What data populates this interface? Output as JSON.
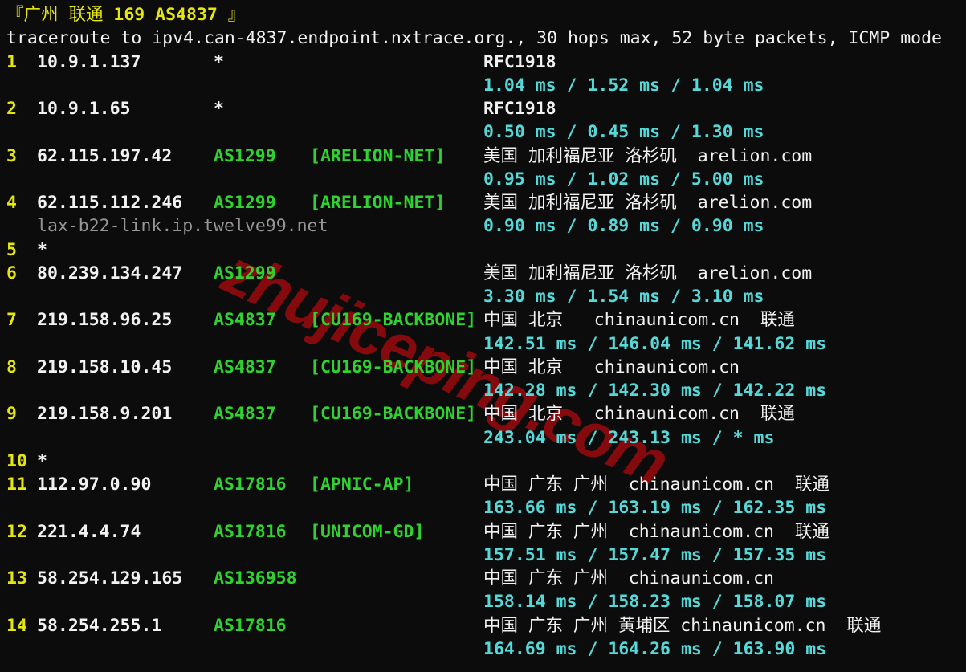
{
  "watermark": "zhujiceping.com",
  "colors": {
    "background": "#0c0c0c",
    "yellow": "#e5e510",
    "green": "#2fd32f",
    "cyan": "#56d8d8",
    "white": "#f2f2f2",
    "gray": "#969696",
    "watermark_red": "#8b0a0e"
  },
  "header": {
    "title_prefix": "『广州 联通 ",
    "title_asn": "169 AS4837",
    "title_suffix": " 』",
    "summary": "traceroute to ipv4.can-4837.endpoint.nxtrace.org., 30 hops max, 52 byte packets, ICMP mode"
  },
  "hops": [
    {
      "n": "1",
      "ip": "10.9.1.137",
      "asn": "*",
      "name": "",
      "geo": "RFC1918",
      "geo_bold": true,
      "lat": "1.04 ms / 1.52 ms / 1.04 ms"
    },
    {
      "n": "2",
      "ip": "10.9.1.65",
      "asn": "*",
      "name": "",
      "geo": "RFC1918",
      "geo_bold": true,
      "lat": "0.50 ms / 0.45 ms / 1.30 ms"
    },
    {
      "n": "3",
      "ip": "62.115.197.42",
      "asn": "AS1299",
      "name": "[ARELION-NET]",
      "geo": "美国 加利福尼亚 洛杉矶  arelion.com",
      "lat": "0.95 ms / 1.02 ms / 5.00 ms"
    },
    {
      "n": "4",
      "ip": "62.115.112.246",
      "asn": "AS1299",
      "name": "[ARELION-NET]",
      "geo": "美国 加利福尼亚 洛杉矶  arelion.com",
      "host": "lax-b22-link.ip.twelve99.net",
      "lat": "0.90 ms / 0.89 ms / 0.90 ms"
    },
    {
      "n": "5",
      "ip": "*"
    },
    {
      "n": "6",
      "ip": "80.239.134.247",
      "asn": "AS1299",
      "name": "",
      "geo": "美国 加利福尼亚 洛杉矶  arelion.com",
      "lat": "3.30 ms / 1.54 ms / 3.10 ms"
    },
    {
      "n": "7",
      "ip": "219.158.96.25",
      "asn": "AS4837",
      "name": "[CU169-BACKBONE]",
      "geo": "中国 北京   chinaunicom.cn  联通",
      "lat": "142.51 ms / 146.04 ms / 141.62 ms"
    },
    {
      "n": "8",
      "ip": "219.158.10.45",
      "asn": "AS4837",
      "name": "[CU169-BACKBONE]",
      "geo": "中国 北京   chinaunicom.cn",
      "lat": "142.28 ms / 142.30 ms / 142.22 ms"
    },
    {
      "n": "9",
      "ip": "219.158.9.201",
      "asn": "AS4837",
      "name": "[CU169-BACKBONE]",
      "geo": "中国 北京   chinaunicom.cn  联通",
      "lat": "243.04 ms / 243.13 ms / * ms"
    },
    {
      "n": "10",
      "ip": "*"
    },
    {
      "n": "11",
      "ip": "112.97.0.90",
      "asn": "AS17816",
      "name": "[APNIC-AP]",
      "geo": "中国 广东 广州  chinaunicom.cn  联通",
      "lat": "163.66 ms / 163.19 ms / 162.35 ms"
    },
    {
      "n": "12",
      "ip": "221.4.4.74",
      "asn": "AS17816",
      "name": "[UNICOM-GD]",
      "geo": "中国 广东 广州  chinaunicom.cn  联通",
      "lat": "157.51 ms / 157.47 ms / 157.35 ms"
    },
    {
      "n": "13",
      "ip": "58.254.129.165",
      "asn": "AS136958",
      "name": "",
      "geo": "中国 广东 广州  chinaunicom.cn",
      "lat": "158.14 ms / 158.23 ms / 158.07 ms"
    },
    {
      "n": "14",
      "ip": "58.254.255.1",
      "asn": "AS17816",
      "name": "",
      "geo": "中国 广东 广州 黄埔区 chinaunicom.cn  联通",
      "lat": "164.69 ms / 164.26 ms / 163.90 ms"
    }
  ]
}
